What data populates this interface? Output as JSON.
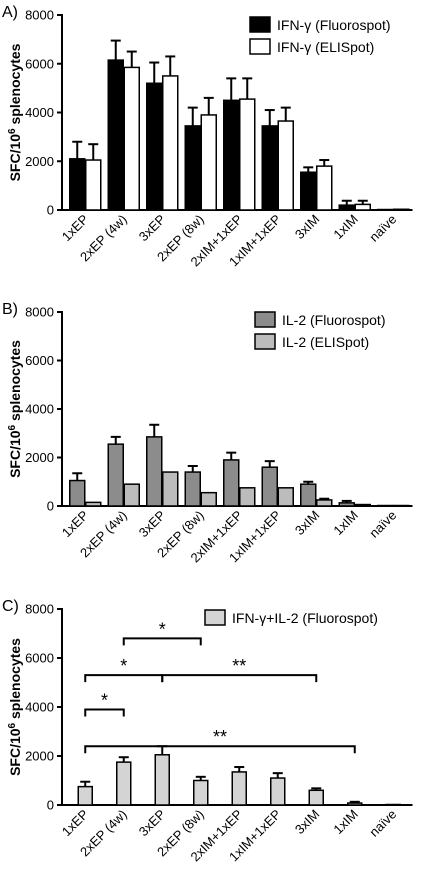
{
  "chart_data": [
    {
      "type": "bar",
      "panel_label": "A)",
      "ylabel": "SFC/10^6 splenocytes",
      "ylim": [
        0,
        8000
      ],
      "yticks": [
        0,
        2000,
        4000,
        6000,
        8000
      ],
      "categories": [
        "1xEP",
        "2xEP (4w)",
        "3xEP",
        "2xEP (8w)",
        "2xIM+1xEP",
        "1xIM+1xEP",
        "3xIM",
        "1xIM",
        "naïve"
      ],
      "legend_position": "top-right",
      "series": [
        {
          "name": "IFN-γ (Fluorospot)",
          "color": "#000000",
          "values": [
            2100,
            6150,
            5200,
            3450,
            4500,
            3450,
            1550,
            200,
            20
          ],
          "errors": [
            700,
            800,
            850,
            750,
            900,
            650,
            200,
            180,
            0
          ]
        },
        {
          "name": "IFN-γ (ELISpot)",
          "color": "#ffffff",
          "values": [
            2050,
            5850,
            5500,
            3900,
            4550,
            3650,
            1800,
            230,
            30
          ],
          "errors": [
            650,
            650,
            800,
            700,
            850,
            550,
            250,
            150,
            0
          ]
        }
      ]
    },
    {
      "type": "bar",
      "panel_label": "B)",
      "ylabel": "SFC/10^6 splenocytes",
      "ylim": [
        0,
        8000
      ],
      "yticks": [
        0,
        2000,
        4000,
        6000,
        8000
      ],
      "categories": [
        "1xEP",
        "2xEP (4w)",
        "3xEP",
        "2xEP (8w)",
        "2xIM+1xEP",
        "1xIM+1xEP",
        "3xIM",
        "1xIM",
        "naïve"
      ],
      "legend_position": "top-right",
      "series": [
        {
          "name": "IL-2 (Fluorospot)",
          "color": "#8c8c8c",
          "values": [
            1050,
            2550,
            2850,
            1400,
            1900,
            1600,
            900,
            130,
            20
          ],
          "errors": [
            300,
            300,
            500,
            250,
            300,
            250,
            100,
            80,
            0
          ]
        },
        {
          "name": "IL-2 (ELISpot)",
          "color": "#bcbcbc",
          "values": [
            150,
            900,
            1400,
            550,
            750,
            750,
            250,
            60,
            20
          ],
          "errors": [
            0,
            0,
            0,
            0,
            0,
            0,
            50,
            0,
            0
          ]
        }
      ]
    },
    {
      "type": "bar",
      "panel_label": "C)",
      "ylabel": "SFC/10^6 splenocytes",
      "ylim": [
        0,
        8000
      ],
      "yticks": [
        0,
        2000,
        4000,
        6000,
        8000
      ],
      "categories": [
        "1xEP",
        "2xEP (4w)",
        "3xEP",
        "2xEP (8w)",
        "2xIM+1xEP",
        "1xIM+1xEP",
        "3xIM",
        "1xIM",
        "naïve"
      ],
      "legend_position": "top-right",
      "series": [
        {
          "name": "IFN-γ+IL-2 (Fluorospot)",
          "color": "#d4d4d4",
          "values": [
            750,
            1750,
            2050,
            1000,
            1350,
            1100,
            600,
            80,
            20
          ],
          "errors": [
            200,
            200,
            350,
            150,
            200,
            200,
            80,
            50,
            0
          ]
        }
      ],
      "annotations": [
        {
          "from": "1xEP",
          "to": "2xEP (4w)",
          "y": 3900,
          "label": "*"
        },
        {
          "from": "1xEP",
          "to": "3xEP",
          "y": 5300,
          "label": "*"
        },
        {
          "from": "2xEP (4w)",
          "to": "2xEP (8w)",
          "y": 6800,
          "label": "*"
        },
        {
          "from": "3xEP",
          "to": "3xIM",
          "y": 5300,
          "label": "**"
        },
        {
          "from": "1xEP",
          "to": "1xIM",
          "y": 2400,
          "label": "**"
        }
      ]
    }
  ]
}
